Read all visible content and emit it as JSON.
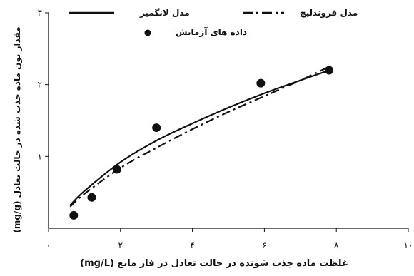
{
  "chart_data": {
    "type": "scatter",
    "xlabel": "غلظت ماده جذب شونده در حالت تعادل در فاز مایع (mg/L)",
    "ylabel": "مقدار یون ماده جذب شده در حالت تعادل (mg/g)",
    "xlim": [
      0,
      10
    ],
    "ylim": [
      0,
      3
    ],
    "x_ticks": [
      "۰",
      "۲",
      "۴",
      "۶",
      "۸",
      "۱۰"
    ],
    "y_ticks": [
      "۱",
      "۲",
      "۳"
    ],
    "y_tick_values": [
      1,
      2,
      3
    ],
    "grid": false,
    "legend_position": "top",
    "series": [
      {
        "name": "مدل لانگمیر",
        "type": "line",
        "style": "solid",
        "x": [
          0.6,
          1.0,
          2.0,
          3.0,
          4.0,
          5.0,
          6.0,
          7.0,
          7.8
        ],
        "y": [
          0.32,
          0.52,
          0.92,
          1.22,
          1.46,
          1.68,
          1.88,
          2.06,
          2.2
        ]
      },
      {
        "name": "مدل فروندلیچ",
        "type": "line",
        "style": "dashdot",
        "x": [
          0.6,
          1.0,
          2.0,
          3.0,
          4.0,
          5.0,
          6.0,
          7.0,
          7.8
        ],
        "y": [
          0.3,
          0.48,
          0.84,
          1.12,
          1.38,
          1.62,
          1.84,
          2.06,
          2.25
        ]
      },
      {
        "name": "داده های آزمایش",
        "type": "scatter",
        "x": [
          0.7,
          1.2,
          1.9,
          3.0,
          5.9,
          7.8
        ],
        "y": [
          0.18,
          0.43,
          0.82,
          1.4,
          2.02,
          2.2
        ]
      }
    ]
  }
}
